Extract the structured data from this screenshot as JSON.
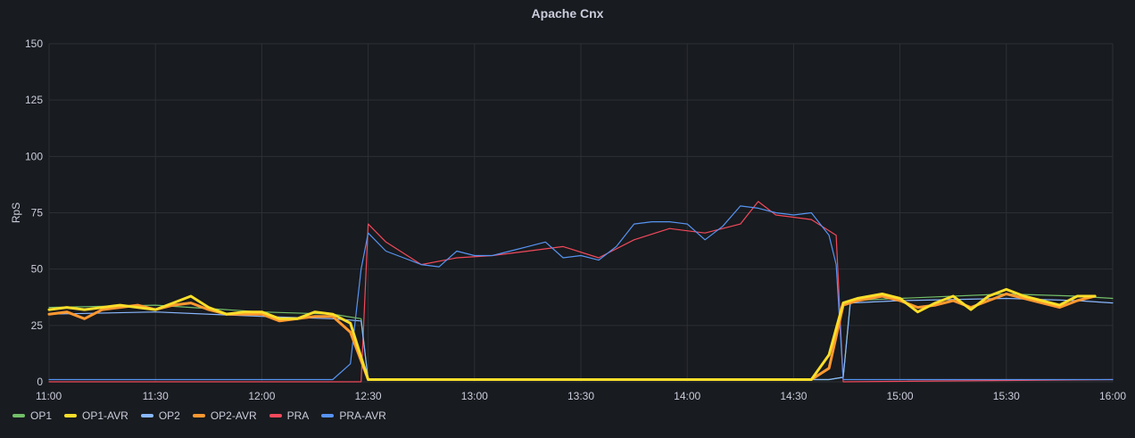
{
  "panel": {
    "title": "Apache Cnx"
  },
  "chart_data": {
    "type": "line",
    "title": "Apache Cnx",
    "ylabel": "RpS",
    "xlabel": "",
    "ylim": [
      0,
      150
    ],
    "yticks": [
      0,
      25,
      50,
      75,
      100,
      125,
      150
    ],
    "xticks": [
      "11:00",
      "11:30",
      "12:00",
      "12:30",
      "13:00",
      "13:30",
      "14:00",
      "14:30",
      "15:00",
      "15:30",
      "16:00"
    ],
    "grid": true,
    "legend_placement": "bottom-left",
    "series": [
      {
        "name": "OP1",
        "color": "#73bf69",
        "x": [
          "11:00",
          "11:30",
          "12:00",
          "12:20",
          "12:28",
          "12:30",
          "13:00",
          "14:00",
          "14:40",
          "14:44",
          "14:46",
          "15:00",
          "15:30",
          "15:50",
          "16:00"
        ],
        "values": [
          33,
          34,
          31,
          30,
          28,
          1,
          1,
          1,
          1,
          2,
          36,
          37,
          39,
          38,
          37
        ]
      },
      {
        "name": "OP1-AVR",
        "color": "#fade2a",
        "x": [
          "11:00",
          "11:05",
          "11:10",
          "11:15",
          "11:20",
          "11:25",
          "11:30",
          "11:35",
          "11:40",
          "11:45",
          "11:50",
          "11:55",
          "12:00",
          "12:05",
          "12:10",
          "12:15",
          "12:20",
          "12:25",
          "12:30",
          "12:35",
          "14:35",
          "14:40",
          "14:44",
          "14:48",
          "14:55",
          "15:00",
          "15:05",
          "15:10",
          "15:15",
          "15:20",
          "15:25",
          "15:30",
          "15:35",
          "15:40",
          "15:45",
          "15:50",
          "15:55"
        ],
        "values": [
          32,
          33,
          32,
          33,
          34,
          33,
          32,
          35,
          38,
          33,
          30,
          31,
          31,
          28,
          28,
          31,
          30,
          26,
          1,
          1,
          1,
          12,
          35,
          37,
          39,
          37,
          31,
          35,
          38,
          32,
          38,
          41,
          38,
          36,
          34,
          38,
          38
        ]
      },
      {
        "name": "OP2",
        "color": "#8ab8ff",
        "x": [
          "11:00",
          "11:30",
          "12:00",
          "12:20",
          "12:28",
          "12:30",
          "13:00",
          "14:00",
          "14:40",
          "14:44",
          "14:46",
          "15:00",
          "15:30",
          "15:50",
          "16:00"
        ],
        "values": [
          30,
          31,
          29,
          28,
          27,
          1,
          1,
          1,
          1,
          2,
          35,
          36,
          37,
          36,
          35
        ]
      },
      {
        "name": "OP2-AVR",
        "color": "#ff9830",
        "x": [
          "11:00",
          "11:05",
          "11:10",
          "11:15",
          "11:20",
          "11:25",
          "11:30",
          "11:35",
          "11:40",
          "11:45",
          "11:50",
          "11:55",
          "12:00",
          "12:05",
          "12:10",
          "12:15",
          "12:20",
          "12:25",
          "12:30",
          "12:35",
          "14:35",
          "14:40",
          "14:44",
          "14:48",
          "14:55",
          "15:00",
          "15:05",
          "15:10",
          "15:15",
          "15:20",
          "15:25",
          "15:30",
          "15:35",
          "15:40",
          "15:45",
          "15:50",
          "15:55"
        ],
        "values": [
          30,
          31,
          28,
          32,
          33,
          34,
          32,
          34,
          35,
          32,
          30,
          30,
          30,
          27,
          28,
          29,
          29,
          22,
          1,
          1,
          1,
          6,
          34,
          36,
          38,
          36,
          33,
          34,
          36,
          33,
          36,
          39,
          37,
          35,
          33,
          36,
          38
        ]
      },
      {
        "name": "PRA",
        "color": "#f2495c",
        "x": [
          "11:00",
          "12:28",
          "12:30",
          "12:35",
          "12:45",
          "12:55",
          "13:05",
          "13:15",
          "13:25",
          "13:35",
          "13:45",
          "13:55",
          "14:05",
          "14:15",
          "14:20",
          "14:25",
          "14:35",
          "14:42",
          "14:44",
          "16:00"
        ],
        "values": [
          0,
          0,
          70,
          62,
          52,
          55,
          56,
          58,
          60,
          55,
          63,
          68,
          66,
          70,
          80,
          74,
          72,
          65,
          0,
          1
        ]
      },
      {
        "name": "PRA-AVR",
        "color": "#5794f2",
        "x": [
          "11:00",
          "12:15",
          "12:20",
          "12:25",
          "12:28",
          "12:30",
          "12:35",
          "12:40",
          "12:45",
          "12:50",
          "12:55",
          "13:00",
          "13:05",
          "13:10",
          "13:15",
          "13:20",
          "13:25",
          "13:30",
          "13:35",
          "13:40",
          "13:45",
          "13:50",
          "13:55",
          "14:00",
          "14:05",
          "14:10",
          "14:15",
          "14:20",
          "14:25",
          "14:30",
          "14:35",
          "14:40",
          "14:42",
          "14:44",
          "16:00"
        ],
        "values": [
          1,
          1,
          1,
          8,
          50,
          66,
          58,
          55,
          52,
          51,
          58,
          56,
          56,
          58,
          60,
          62,
          55,
          56,
          54,
          60,
          70,
          71,
          71,
          70,
          63,
          69,
          78,
          77,
          75,
          74,
          75,
          65,
          52,
          1,
          1
        ]
      }
    ]
  }
}
